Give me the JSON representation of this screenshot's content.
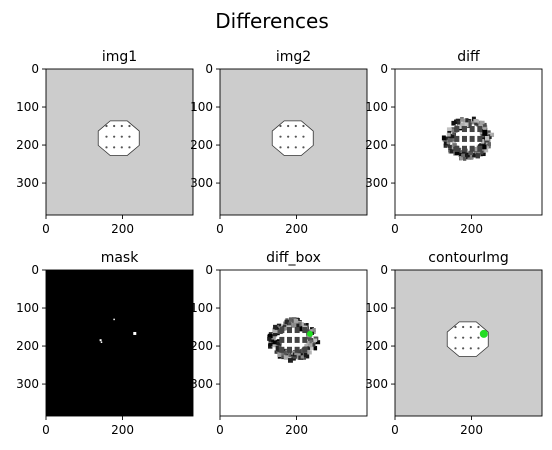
{
  "suptitle": "Differences",
  "colors": {
    "gray_bg": "#cccccc",
    "white": "#ffffff",
    "black": "#000000",
    "green": "#22dd22",
    "shape_outline": "#333333"
  },
  "chart_data": [
    {
      "type": "heatmap",
      "title": "img1",
      "background": "gray",
      "content": "octagon-with-dots",
      "xlim": [
        0,
        384
      ],
      "ylim": [
        384,
        0
      ],
      "xticks": [
        0,
        200
      ],
      "yticks": [
        0,
        100,
        200,
        300
      ],
      "xtick_labels": [
        "0",
        "200"
      ],
      "ytick_labels": [
        "0",
        "100",
        "200",
        "300"
      ]
    },
    {
      "type": "heatmap",
      "title": "img2",
      "background": "gray",
      "content": "octagon-with-dots",
      "xlim": [
        0,
        384
      ],
      "ylim": [
        384,
        0
      ],
      "xticks": [
        0,
        200
      ],
      "yticks": [
        0,
        100,
        200,
        300
      ],
      "xtick_labels": [
        "0",
        "200"
      ],
      "ytick_labels": [
        "0",
        "100",
        "200",
        "300"
      ]
    },
    {
      "type": "heatmap",
      "title": "diff",
      "background": "white",
      "content": "diff-noise",
      "xlim": [
        0,
        384
      ],
      "ylim": [
        384,
        0
      ],
      "xticks": [
        0,
        200
      ],
      "yticks": [
        0,
        100,
        200,
        300
      ],
      "xtick_labels": [
        "0",
        "200"
      ],
      "ytick_labels": [
        "0",
        "100",
        "200",
        "300"
      ]
    },
    {
      "type": "heatmap",
      "title": "mask",
      "background": "black",
      "content": "sparse-white-specks",
      "xlim": [
        0,
        384
      ],
      "ylim": [
        384,
        0
      ],
      "xticks": [
        0,
        200
      ],
      "yticks": [
        0,
        100,
        200,
        300
      ],
      "xtick_labels": [
        "0",
        "200"
      ],
      "ytick_labels": [
        "0",
        "100",
        "200",
        "300"
      ]
    },
    {
      "type": "heatmap",
      "title": "diff_box",
      "background": "white",
      "content": "diff-noise-with-green-box",
      "xlim": [
        0,
        384
      ],
      "ylim": [
        384,
        0
      ],
      "xticks": [
        0,
        200
      ],
      "yticks": [
        0,
        100,
        200,
        300
      ],
      "xtick_labels": [
        "0",
        "200"
      ],
      "ytick_labels": [
        "0",
        "100",
        "200",
        "300"
      ]
    },
    {
      "type": "heatmap",
      "title": "contourImg",
      "background": "gray",
      "content": "octagon-with-green-contour",
      "xlim": [
        0,
        384
      ],
      "ylim": [
        384,
        0
      ],
      "xticks": [
        0,
        200
      ],
      "yticks": [
        0,
        100,
        200,
        300
      ],
      "xtick_labels": [
        "0",
        "200"
      ],
      "ytick_labels": [
        "0",
        "100",
        "200",
        "300"
      ]
    }
  ]
}
